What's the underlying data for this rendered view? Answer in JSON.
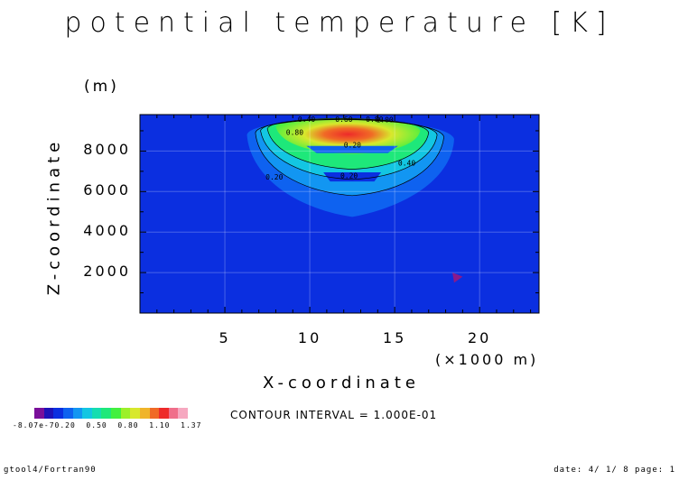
{
  "title": "potential temperature [K]",
  "y_unit": "(m)",
  "contour_interval_text": "CONTOUR INTERVAL = 1.000E-01",
  "footer": {
    "left": "gtool4/Fortran90",
    "right": "date: 4/ 1/ 8 page: 1"
  },
  "colorbar": {
    "labels_text": "-8.07e-70.20  0.50  0.80  1.10  1.37",
    "colors": [
      "#7a0f9a",
      "#1e12b8",
      "#0b2fe0",
      "#0e62f0",
      "#1296f2",
      "#13c6e2",
      "#15ddb0",
      "#1ee87a",
      "#42f040",
      "#9cf02a",
      "#d8e82c",
      "#f0b42a",
      "#f06a26",
      "#ee2a2a",
      "#f06e8a",
      "#f6a8c0"
    ]
  },
  "chart_data": {
    "type": "heatmap",
    "title": "potential temperature [K]",
    "xlabel": "X-coordinate",
    "xunit_label": "(×1000 m)",
    "ylabel": "Z-coordinate",
    "yunit_label": "(m)",
    "xlim": [
      0,
      23.5
    ],
    "ylim": [
      0,
      9800
    ],
    "xticks": [
      "5",
      "10",
      "15",
      "20"
    ],
    "yticks": [
      "2000",
      "4000",
      "6000",
      "8000"
    ],
    "grid": true,
    "value_range": [
      -8.07e-07,
      1.37
    ],
    "contour_interval": 0.1,
    "contour_labels": [
      "0.40",
      "0.60",
      "0.80",
      "1.00",
      "0.80",
      "0.20",
      "0.40",
      "0.20",
      "0.20"
    ]
  }
}
